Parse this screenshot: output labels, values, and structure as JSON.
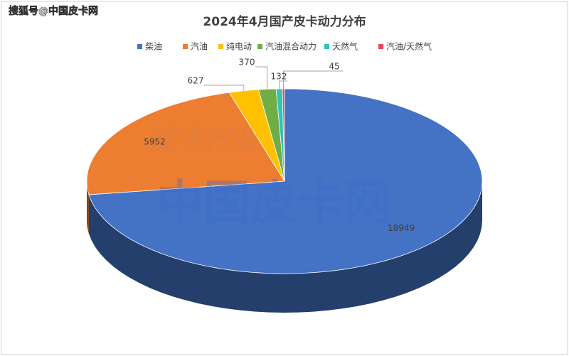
{
  "chart_data": {
    "type": "pie3d",
    "title": "2024年4月国产皮卡动力分布",
    "categories": [
      "柴油",
      "汽油",
      "纯电动",
      "汽油混合动力",
      "天然气",
      "汽油/天然气"
    ],
    "values": [
      18949,
      5952,
      627,
      370,
      132,
      45
    ],
    "colors": [
      "#4472c4",
      "#ed7d31",
      "#ffc000",
      "#70ad47",
      "#2ec4b6",
      "#e8475f"
    ],
    "legend": "top",
    "watermarks": [
      "搜狐号@中国皮卡网",
      "皮卡行业",
      "中国皮卡网"
    ]
  }
}
